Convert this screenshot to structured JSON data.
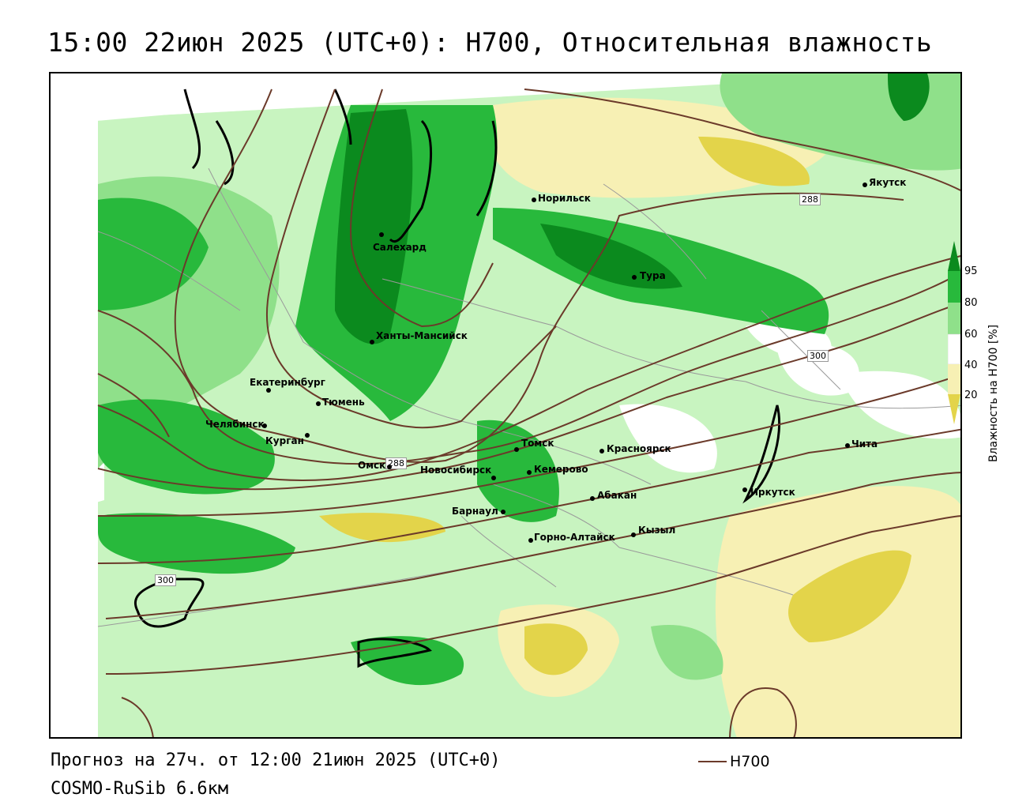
{
  "title": "15:00 22июн 2025 (UTC+0): H700, Относительная влажность",
  "footer": {
    "forecast": "Прогноз на 27ч. от 12:00 21июн 2025 (UTC+0)",
    "model": "COSMO-RuSib 6.6км"
  },
  "legend": {
    "line_label": "H700",
    "line_color": "#6b3a2a"
  },
  "colorbar": {
    "title": "Влажность на H700 [%]",
    "ticks": [
      "95",
      "80",
      "60",
      "40",
      "20"
    ],
    "colors": {
      "dark_green": "#0b8a1e",
      "green": "#28b93c",
      "light_green": "#8fe08a",
      "pale_green": "#c8f4c0",
      "white": "#ffffff",
      "pale_yellow": "#f7f0b4",
      "yellow": "#e3d44a",
      "dark_yellow": "#c9b92c"
    }
  },
  "cities": [
    {
      "name": "Норильск"
    },
    {
      "name": "Якутск"
    },
    {
      "name": "Салехард"
    },
    {
      "name": "Тура"
    },
    {
      "name": "Ханты-Мансийск"
    },
    {
      "name": "Екатеринбург"
    },
    {
      "name": "Тюмень"
    },
    {
      "name": "Челябинск"
    },
    {
      "name": "Курган"
    },
    {
      "name": "Омск"
    },
    {
      "name": "Томск"
    },
    {
      "name": "Красноярск"
    },
    {
      "name": "Новосибирск"
    },
    {
      "name": "Кемерово"
    },
    {
      "name": "Абакан"
    },
    {
      "name": "Барнаул"
    },
    {
      "name": "Горно-Алтайск"
    },
    {
      "name": "Кызыл"
    },
    {
      "name": "Иркутск"
    },
    {
      "name": "Чита"
    }
  ],
  "contour_labels": [
    "288",
    "300",
    "288",
    "300"
  ]
}
